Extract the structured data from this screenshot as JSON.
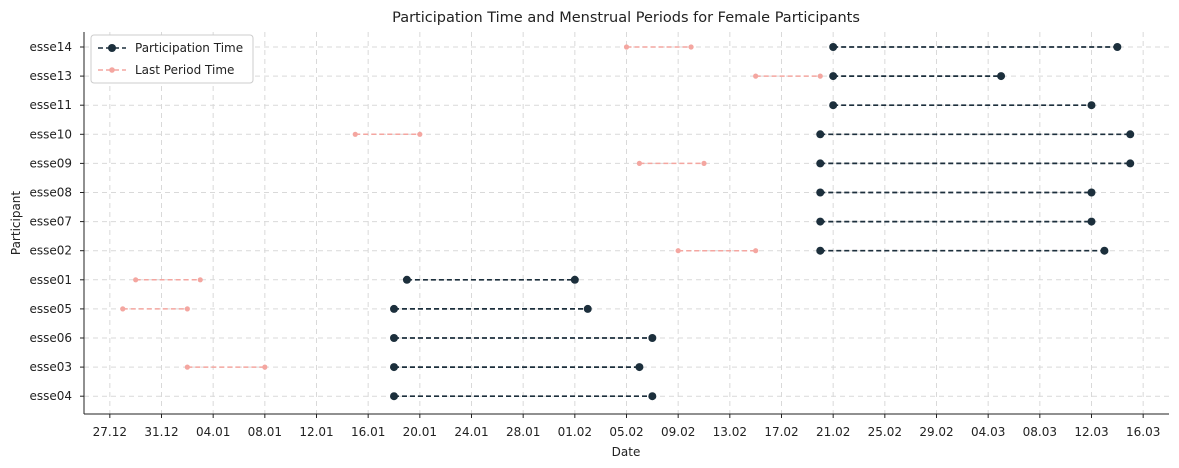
{
  "chart_data": {
    "type": "line",
    "title": "Participation Time and Menstrual Periods for Female Participants",
    "xlabel": "Date",
    "ylabel": "Participant",
    "x_ticks": [
      "27.12",
      "31.12",
      "04.01",
      "08.01",
      "12.01",
      "16.01",
      "20.01",
      "24.01",
      "28.01",
      "01.02",
      "05.02",
      "09.02",
      "13.02",
      "17.02",
      "21.02",
      "25.02",
      "29.02",
      "04.03",
      "08.03",
      "12.03",
      "16.03"
    ],
    "xlim": [
      "2023-12-25",
      "2024-03-18"
    ],
    "participants": [
      "esse14",
      "esse13",
      "esse11",
      "esse10",
      "esse09",
      "esse08",
      "esse07",
      "esse02",
      "esse01",
      "esse05",
      "esse06",
      "esse03",
      "esse04"
    ],
    "legend": {
      "position": "top-left"
    },
    "grid": true,
    "series": [
      {
        "name": "Participation Time",
        "color": "#1c2f3c",
        "segments": [
          {
            "participant": "esse14",
            "start": "2024-02-21",
            "end": "2024-03-14"
          },
          {
            "participant": "esse13",
            "start": "2024-02-21",
            "end": "2024-03-05"
          },
          {
            "participant": "esse11",
            "start": "2024-02-21",
            "end": "2024-03-12"
          },
          {
            "participant": "esse10",
            "start": "2024-02-20",
            "end": "2024-03-15"
          },
          {
            "participant": "esse09",
            "start": "2024-02-20",
            "end": "2024-03-15"
          },
          {
            "participant": "esse08",
            "start": "2024-02-20",
            "end": "2024-03-12"
          },
          {
            "participant": "esse07",
            "start": "2024-02-20",
            "end": "2024-03-12"
          },
          {
            "participant": "esse02",
            "start": "2024-02-20",
            "end": "2024-03-13"
          },
          {
            "participant": "esse01",
            "start": "2024-01-19",
            "end": "2024-02-01"
          },
          {
            "participant": "esse05",
            "start": "2024-01-18",
            "end": "2024-02-02"
          },
          {
            "participant": "esse06",
            "start": "2024-01-18",
            "end": "2024-02-07"
          },
          {
            "participant": "esse03",
            "start": "2024-01-18",
            "end": "2024-02-06"
          },
          {
            "participant": "esse04",
            "start": "2024-01-18",
            "end": "2024-02-07"
          }
        ]
      },
      {
        "name": "Last Period Time",
        "color": "#f4a6a0",
        "segments": [
          {
            "participant": "esse14",
            "start": "2024-02-05",
            "end": "2024-02-10"
          },
          {
            "participant": "esse13",
            "start": "2024-02-15",
            "end": "2024-02-20"
          },
          {
            "participant": "esse10",
            "start": "2024-01-15",
            "end": "2024-01-20"
          },
          {
            "participant": "esse09",
            "start": "2024-02-06",
            "end": "2024-02-11"
          },
          {
            "participant": "esse02",
            "start": "2024-02-09",
            "end": "2024-02-15"
          },
          {
            "participant": "esse01",
            "start": "2023-12-29",
            "end": "2024-01-03"
          },
          {
            "participant": "esse05",
            "start": "2023-12-28",
            "end": "2024-01-02"
          },
          {
            "participant": "esse03",
            "start": "2024-01-02",
            "end": "2024-01-08"
          }
        ]
      }
    ]
  }
}
